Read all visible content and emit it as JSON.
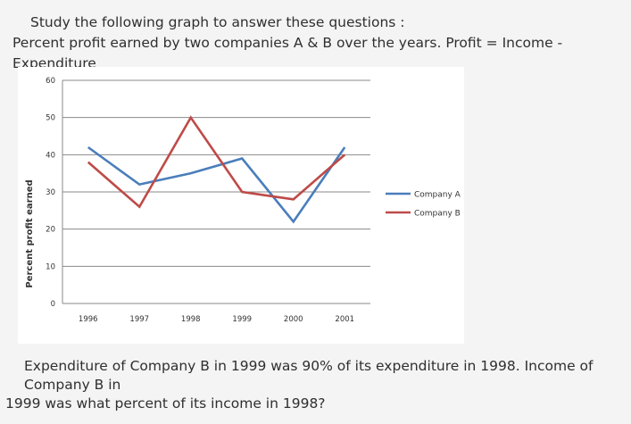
{
  "intro": {
    "line1": "Study the following graph to answer these questions :",
    "line2": "Percent profit earned by two companies A & B over the years. Profit = Income - Expenditure"
  },
  "question": {
    "line1": "Expenditure of Company B in 1999 was 90% of its expenditure in 1998. Income of Company B in",
    "line2": "1999 was what percent of its income in 1998?"
  },
  "chart_data": {
    "type": "line",
    "title": "",
    "xlabel": "",
    "ylabel": "Percent profit earned",
    "categories": [
      "1996",
      "1997",
      "1998",
      "1999",
      "2000",
      "2001"
    ],
    "yticks": [
      0,
      10,
      20,
      30,
      40,
      50,
      60
    ],
    "ylim": [
      0,
      60
    ],
    "grid": true,
    "legend_position": "right",
    "series": [
      {
        "name": "Company A",
        "color": "#4a7ebb",
        "values": [
          42,
          32,
          35,
          39,
          22,
          42
        ]
      },
      {
        "name": "Company B",
        "color": "#be4b48",
        "values": [
          38,
          26,
          50,
          30,
          28,
          40
        ]
      }
    ]
  }
}
